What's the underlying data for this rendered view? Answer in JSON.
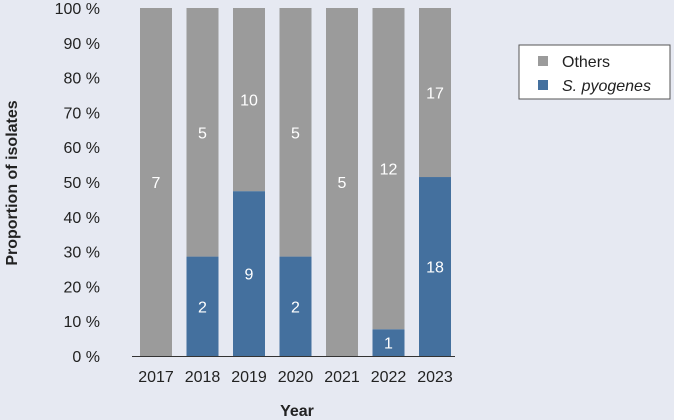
{
  "chart_data": {
    "type": "bar",
    "stacked": true,
    "normalized": true,
    "categories": [
      "2017",
      "2018",
      "2019",
      "2020",
      "2021",
      "2022",
      "2023"
    ],
    "series": [
      {
        "name": "S. pyogenes",
        "name_italic": true,
        "color": "#44709e",
        "counts": [
          0,
          2,
          9,
          2,
          0,
          1,
          18
        ]
      },
      {
        "name": "Others",
        "name_italic": false,
        "color": "#9b9b9b",
        "counts": [
          7,
          5,
          10,
          5,
          5,
          12,
          17
        ]
      }
    ],
    "xlabel": "Year",
    "ylabel": "Proportion of isolates",
    "ylim": [
      0,
      100
    ],
    "yticks": [
      "0 %",
      "10 %",
      "20 %",
      "30 %",
      "40 %",
      "50 %",
      "60 %",
      "70 %",
      "80 %",
      "90 %",
      "100 %"
    ],
    "grid": false,
    "legend_position": "right"
  }
}
